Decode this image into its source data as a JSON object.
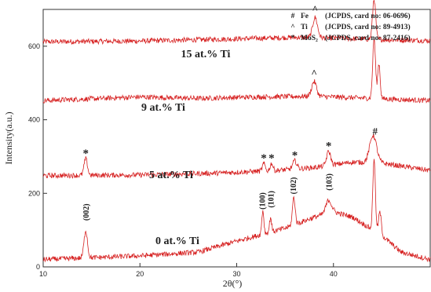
{
  "chart_data": {
    "type": "line",
    "xlabel": "2θ(°)",
    "ylabel": "Intensity(a.u.)",
    "xlim": [
      10,
      50
    ],
    "ylim": [
      0,
      700
    ],
    "xticks": [
      "10",
      "20",
      "30",
      "40"
    ],
    "yticks": [
      "0",
      "200",
      "400",
      "600"
    ],
    "grid": false,
    "line_color": "#d62020",
    "legend": [
      {
        "symbol": "#",
        "phase": "Fe",
        "ref": "(JCPDS, card no:  06-0696)"
      },
      {
        "symbol": "^",
        "phase": "Ti",
        "ref": "(JCPDS, card no:  89-4913)"
      },
      {
        "symbol": "*",
        "phase": "MoS₂",
        "ref": "(JCPDS, card no:  87-2416)"
      }
    ],
    "series": [
      {
        "name": "15 at.% Ti",
        "baseline": [
          [
            10,
            612
          ],
          [
            20,
            614
          ],
          [
            30,
            620
          ],
          [
            36,
            624
          ],
          [
            40,
            622
          ],
          [
            45,
            618
          ],
          [
            50,
            615
          ]
        ],
        "peaks": [
          {
            "x": 38.1,
            "height": 55,
            "width": 0.35
          },
          {
            "x": 44.2,
            "height": 110,
            "width": 0.22
          }
        ],
        "markers": [
          {
            "x": 38.1,
            "text": "^"
          }
        ]
      },
      {
        "name": "9 at.% Ti",
        "baseline": [
          [
            10,
            452
          ],
          [
            14,
            456
          ],
          [
            20,
            462
          ],
          [
            26,
            458
          ],
          [
            32,
            462
          ],
          [
            38,
            464
          ],
          [
            44,
            458
          ],
          [
            50,
            452
          ]
        ],
        "peaks": [
          {
            "x": 38.0,
            "height": 40,
            "width": 0.35
          },
          {
            "x": 44.2,
            "height": 165,
            "width": 0.2
          },
          {
            "x": 44.7,
            "height": 95,
            "width": 0.18
          }
        ],
        "markers": [
          {
            "x": 38.0,
            "text": "^"
          }
        ]
      },
      {
        "name": "5 at.% Ti",
        "baseline": [
          [
            10,
            248
          ],
          [
            20,
            250
          ],
          [
            28,
            255
          ],
          [
            34,
            262
          ],
          [
            38,
            270
          ],
          [
            42,
            285
          ],
          [
            45,
            282
          ],
          [
            50,
            262
          ]
        ],
        "peaks": [
          {
            "x": 14.4,
            "height": 45,
            "width": 0.25
          },
          {
            "x": 32.8,
            "height": 20,
            "width": 0.2
          },
          {
            "x": 33.6,
            "height": 20,
            "width": 0.2
          },
          {
            "x": 36.0,
            "height": 22,
            "width": 0.3
          },
          {
            "x": 39.5,
            "height": 38,
            "width": 0.3
          },
          {
            "x": 44.1,
            "height": 75,
            "width": 0.5
          }
        ],
        "markers": [
          {
            "x": 14.4,
            "text": "*"
          },
          {
            "x": 32.8,
            "text": "*"
          },
          {
            "x": 33.6,
            "text": "*"
          },
          {
            "x": 36.0,
            "text": "*"
          },
          {
            "x": 39.5,
            "text": "*"
          },
          {
            "x": 44.3,
            "text": "#"
          }
        ]
      },
      {
        "name": "0 at.% Ti",
        "baseline": [
          [
            10,
            20
          ],
          [
            14,
            24
          ],
          [
            20,
            30
          ],
          [
            26,
            40
          ],
          [
            30,
            70
          ],
          [
            35,
            105
          ],
          [
            38,
            135
          ],
          [
            40,
            150
          ],
          [
            42,
            135
          ],
          [
            45,
            85
          ],
          [
            47,
            40
          ],
          [
            50,
            20
          ]
        ],
        "peaks": [
          {
            "x": 14.4,
            "height": 75,
            "width": 0.25
          },
          {
            "x": 32.7,
            "height": 65,
            "width": 0.15
          },
          {
            "x": 33.5,
            "height": 40,
            "width": 0.15
          },
          {
            "x": 35.9,
            "height": 75,
            "width": 0.2
          },
          {
            "x": 39.5,
            "height": 35,
            "width": 0.4
          },
          {
            "x": 44.2,
            "height": 200,
            "width": 0.18
          },
          {
            "x": 44.8,
            "height": 60,
            "width": 0.2
          }
        ],
        "markers": [
          {
            "x": 14.4,
            "text": "(002)"
          },
          {
            "x": 32.6,
            "text": "(100)"
          },
          {
            "x": 33.5,
            "text": "(101)"
          },
          {
            "x": 35.8,
            "text": "(102)"
          },
          {
            "x": 39.5,
            "text": "(103)"
          }
        ]
      }
    ]
  }
}
